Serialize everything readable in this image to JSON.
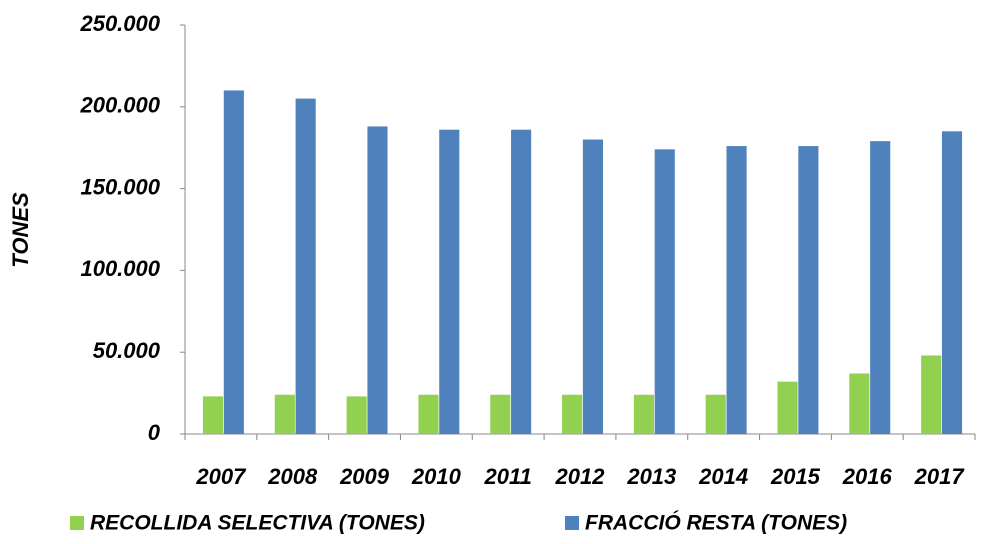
{
  "chart_data": {
    "type": "bar",
    "y_label": "TONES",
    "categories": [
      "2007",
      "2008",
      "2009",
      "2010",
      "2011",
      "2012",
      "2013",
      "2014",
      "2015",
      "2016",
      "2017"
    ],
    "series": [
      {
        "name": "RECOLLIDA SELECTIVA (TONES)",
        "color": "#92d050",
        "values": [
          23000,
          24000,
          23000,
          24000,
          24000,
          24000,
          24000,
          24000,
          32000,
          37000,
          48000
        ]
      },
      {
        "name": "FRACCIÓ RESTA (TONES)",
        "color": "#4f81bd",
        "values": [
          210000,
          205000,
          188000,
          186000,
          186000,
          180000,
          174000,
          176000,
          176000,
          179000,
          185000
        ]
      }
    ],
    "ylim": [
      0,
      250000
    ],
    "yticks": [
      0,
      {
        "value": 50000,
        "label": "50.000"
      },
      {
        "value": 100000,
        "label": "100.000"
      },
      {
        "value": 150000,
        "label": "150.000"
      },
      {
        "value": 200000,
        "label": "200.000"
      },
      {
        "value": 250000,
        "label": "250.000"
      }
    ],
    "grid": false,
    "legend": "bottom"
  }
}
